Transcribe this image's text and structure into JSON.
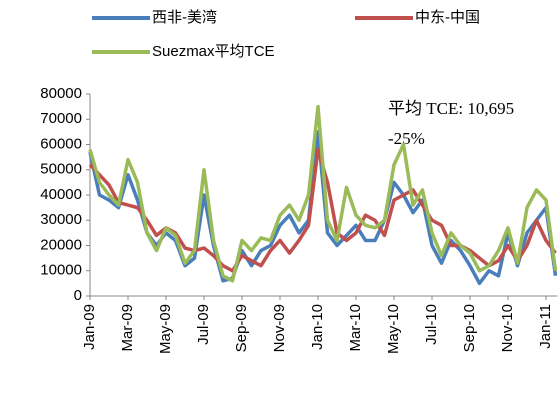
{
  "chart_data": {
    "type": "line",
    "categories": [
      "Jan-09",
      null,
      null,
      null,
      "Mar-09",
      null,
      null,
      null,
      "May-09",
      null,
      null,
      null,
      "Jul-09",
      null,
      null,
      null,
      "Sep-09",
      null,
      null,
      null,
      "Nov-09",
      null,
      null,
      null,
      "Jan-10",
      null,
      null,
      null,
      "Mar-10",
      null,
      null,
      null,
      "May-10",
      null,
      null,
      null,
      "Jul-10",
      null,
      null,
      null,
      "Sep-10",
      null,
      null,
      null,
      "Nov-10",
      null,
      null,
      null,
      "Jan-11",
      null
    ],
    "series": [
      {
        "name": "西非-美湾",
        "color": "#4a7ebb",
        "values": [
          57000,
          40000,
          38000,
          35000,
          48000,
          38000,
          25000,
          20000,
          25000,
          22000,
          12000,
          15000,
          40000,
          20000,
          6000,
          7000,
          18000,
          12000,
          18000,
          20000,
          28000,
          32000,
          25000,
          30000,
          65000,
          25000,
          20000,
          24000,
          28000,
          22000,
          22000,
          30000,
          45000,
          40000,
          33000,
          38000,
          20000,
          13000,
          22000,
          18000,
          12000,
          5000,
          10000,
          8000,
          25000,
          12000,
          25000,
          30000,
          35000,
          8000
        ]
      },
      {
        "name": "中东-中国",
        "color": "#c0504d",
        "values": [
          52000,
          48000,
          44000,
          37000,
          36000,
          35000,
          30000,
          24000,
          27000,
          25000,
          19000,
          18000,
          19000,
          16000,
          12000,
          10000,
          16000,
          14000,
          12000,
          18000,
          22000,
          17000,
          22000,
          28000,
          58000,
          45000,
          25000,
          22000,
          25000,
          32000,
          30000,
          24000,
          38000,
          40000,
          42000,
          36000,
          30000,
          28000,
          20000,
          20000,
          18000,
          15000,
          12000,
          14000,
          20000,
          14000,
          20000,
          30000,
          22000,
          17000
        ]
      },
      {
        "name": "Suezmax平均TCE",
        "color": "#9bbb59",
        "values": [
          58000,
          45000,
          40000,
          36000,
          54000,
          45000,
          25000,
          18000,
          27000,
          24000,
          13000,
          18000,
          50000,
          22000,
          8000,
          6000,
          22000,
          18000,
          23000,
          22000,
          32000,
          36000,
          30000,
          40000,
          75000,
          30000,
          22000,
          43000,
          32000,
          28000,
          27000,
          30000,
          52000,
          60000,
          36000,
          42000,
          25000,
          16000,
          25000,
          20000,
          17000,
          10000,
          12000,
          18000,
          27000,
          13000,
          35000,
          42000,
          38000,
          10000
        ]
      }
    ],
    "annotations": [
      "平均 TCE: 10,695",
      "-25%"
    ],
    "ylim": [
      0,
      80000
    ],
    "yticks": [
      0,
      10000,
      20000,
      30000,
      40000,
      50000,
      60000,
      70000,
      80000
    ],
    "grid": false
  }
}
